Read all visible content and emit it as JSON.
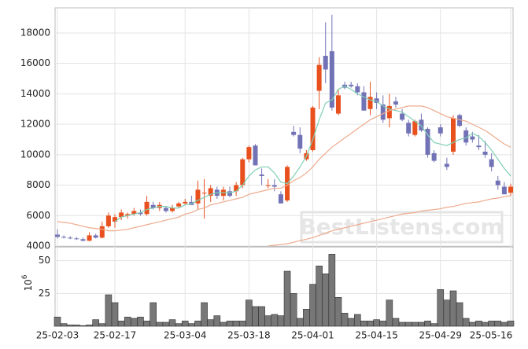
{
  "chart_data": {
    "type": "candlestick",
    "categories": [
      "25-02-03",
      null,
      null,
      null,
      null,
      null,
      null,
      null,
      null,
      "25-02-17",
      null,
      null,
      null,
      null,
      null,
      null,
      null,
      null,
      null,
      null,
      "25-03-04",
      null,
      null,
      null,
      null,
      null,
      null,
      null,
      null,
      null,
      "25-03-18",
      null,
      null,
      null,
      null,
      null,
      null,
      null,
      null,
      null,
      "25-04-01",
      null,
      null,
      null,
      null,
      null,
      null,
      null,
      null,
      null,
      "25-04-15",
      null,
      null,
      null,
      null,
      null,
      null,
      null,
      null,
      null,
      "25-04-29",
      null,
      null,
      null,
      null,
      null,
      null,
      null,
      null,
      null,
      null,
      "25-05-16"
    ],
    "open": [
      4750,
      4600,
      4550,
      4500,
      4450,
      4350,
      4700,
      4550,
      5300,
      5600,
      5900,
      6000,
      6100,
      6200,
      6100,
      6700,
      6500,
      6500,
      6300,
      6600,
      6800,
      6900,
      6800,
      7500,
      7300,
      7700,
      7300,
      7600,
      7600,
      8000,
      9700,
      10600,
      8700,
      8000,
      8000,
      7400,
      7000,
      11500,
      11300,
      9700,
      10300,
      14200,
      16500,
      16800,
      12700,
      14600,
      14600,
      14500,
      14100,
      13000,
      13700,
      13300,
      12400,
      13500,
      12700,
      12100,
      11300,
      12300,
      11700,
      10100,
      11800,
      9400,
      10200,
      12600,
      11600,
      11200,
      10600,
      10200,
      9700,
      8300,
      7900,
      7500
    ],
    "high": [
      5100,
      4700,
      4650,
      4600,
      4550,
      4900,
      4800,
      5600,
      6200,
      6100,
      6400,
      6200,
      6500,
      6400,
      7300,
      6900,
      6900,
      6600,
      6700,
      6900,
      7100,
      7300,
      8300,
      8400,
      8000,
      7900,
      7900,
      7900,
      8200,
      9800,
      10600,
      10700,
      9100,
      8400,
      8400,
      7600,
      9300,
      11900,
      11800,
      10300,
      13200,
      16400,
      18700,
      19200,
      14300,
      14800,
      14800,
      14700,
      14500,
      14800,
      14100,
      13900,
      14000,
      13800,
      13000,
      12300,
      12300,
      12700,
      11800,
      10300,
      12000,
      9800,
      12600,
      12700,
      11800,
      11500,
      11300,
      10900,
      10100,
      8600,
      8200,
      8100
    ],
    "low": [
      4500,
      4500,
      4450,
      4400,
      4300,
      4300,
      4500,
      4500,
      5200,
      5200,
      5700,
      5800,
      6000,
      6000,
      6000,
      6400,
      6300,
      6200,
      6200,
      6500,
      6700,
      6700,
      6400,
      5800,
      6900,
      7100,
      7000,
      7200,
      7300,
      7800,
      9500,
      9300,
      8000,
      7800,
      7600,
      6800,
      6900,
      11200,
      10100,
      9600,
      10200,
      13000,
      14700,
      12900,
      12600,
      14300,
      14400,
      13900,
      12900,
      12600,
      13000,
      12100,
      11800,
      13100,
      12200,
      11200,
      11200,
      11500,
      9800,
      9500,
      11200,
      9000,
      10000,
      11800,
      10600,
      10800,
      10300,
      9800,
      8900,
      7700,
      7400,
      7300
    ],
    "close": [
      4600,
      4550,
      4500,
      4450,
      4350,
      4700,
      4550,
      5300,
      6000,
      5900,
      6200,
      6100,
      6300,
      6100,
      6900,
      6500,
      6700,
      6300,
      6500,
      6800,
      6900,
      6700,
      7700,
      7500,
      7800,
      7300,
      7700,
      7300,
      8000,
      9700,
      10500,
      9300,
      8600,
      8000,
      7900,
      6800,
      9200,
      11300,
      10400,
      10100,
      13100,
      15900,
      15600,
      13100,
      13900,
      14400,
      14500,
      14100,
      12900,
      13800,
      13400,
      12300,
      13200,
      13300,
      12300,
      11400,
      12200,
      11600,
      10000,
      9600,
      11400,
      9200,
      12400,
      11900,
      10800,
      11000,
      10500,
      10000,
      9200,
      8000,
      7400,
      7900
    ],
    "up_color": "#e8501e",
    "down_color": "#7272b6",
    "ylim": [
      4000,
      19650
    ],
    "yticks": [
      4000,
      6000,
      8000,
      10000,
      12000,
      14000,
      16000,
      18000
    ],
    "grid": true,
    "series": [
      {
        "color": "#7fcfb4",
        "values": [
          null,
          null,
          null,
          null,
          null,
          null,
          null,
          null,
          null,
          5600,
          5900,
          6000,
          6100,
          6200,
          6400,
          6500,
          6600,
          6600,
          6500,
          6500,
          6700,
          6800,
          7000,
          7200,
          7400,
          7500,
          7500,
          7500,
          7600,
          8000,
          8600,
          9000,
          9200,
          9200,
          8800,
          8200,
          8100,
          8600,
          9200,
          9900,
          11000,
          12300,
          13400,
          13600,
          14300,
          14500,
          14300,
          14000,
          13800,
          13600,
          13500,
          13200,
          13000,
          12900,
          12800,
          12500,
          12200,
          11900,
          11300,
          10800,
          10700,
          10600,
          10800,
          11000,
          11100,
          11400,
          11200,
          10800,
          10300,
          9700,
          9100,
          8600
        ]
      },
      {
        "color": "#eeaa8c",
        "values": [
          5600,
          5550,
          5500,
          5400,
          5300,
          5200,
          5150,
          5100,
          5000,
          5000,
          5050,
          5100,
          5200,
          5300,
          5400,
          5500,
          5600,
          5700,
          5800,
          5900,
          6100,
          6200,
          6400,
          6500,
          6700,
          6800,
          6900,
          7000,
          7100,
          7200,
          7400,
          7500,
          7600,
          7700,
          7800,
          7800,
          8000,
          8300,
          8500,
          8800,
          9200,
          9700,
          10100,
          10500,
          10800,
          11100,
          11400,
          11700,
          12000,
          12300,
          12500,
          12700,
          12900,
          13000,
          13100,
          13200,
          13200,
          13200,
          13100,
          12900,
          12700,
          12500,
          12400,
          12300,
          12200,
          12000,
          11800,
          11600,
          11300,
          11000,
          10700,
          10500
        ]
      },
      {
        "color": "#eeaa8c",
        "values": [
          null,
          null,
          null,
          null,
          null,
          null,
          null,
          null,
          null,
          null,
          null,
          null,
          null,
          null,
          null,
          null,
          null,
          null,
          null,
          null,
          null,
          null,
          null,
          null,
          null,
          null,
          null,
          null,
          null,
          null,
          null,
          null,
          null,
          4000,
          4050,
          4100,
          4150,
          4250,
          4350,
          4450,
          4550,
          4700,
          4850,
          5000,
          5100,
          5200,
          5300,
          5400,
          5500,
          5600,
          5700,
          5800,
          5900,
          6000,
          6100,
          6150,
          6200,
          6300,
          6350,
          6400,
          6450,
          6550,
          6600,
          6700,
          6800,
          6850,
          6900,
          7000,
          7100,
          7150,
          7250,
          7300
        ]
      }
    ],
    "volume": {
      "values": [
        7,
        2,
        1,
        1,
        0.5,
        1,
        5,
        2,
        24,
        18,
        4,
        7,
        6,
        7,
        4,
        18,
        3,
        3,
        5,
        2,
        4,
        2,
        4,
        18,
        5,
        8,
        3,
        4,
        4,
        4,
        20,
        15,
        15,
        8,
        9,
        8,
        42,
        25,
        6,
        13,
        32,
        46,
        40,
        55,
        22,
        10,
        6,
        9,
        4,
        4,
        5,
        4,
        20,
        6,
        3,
        3,
        3,
        3,
        4,
        2,
        28,
        20,
        27,
        18,
        6,
        3,
        4,
        3,
        4,
        4,
        3,
        4
      ],
      "color": "#777777",
      "ylim": [
        0,
        60
      ],
      "yticks": [
        25,
        50
      ],
      "label": "10",
      "exponent": "6"
    },
    "watermark": "BestListens.com"
  }
}
